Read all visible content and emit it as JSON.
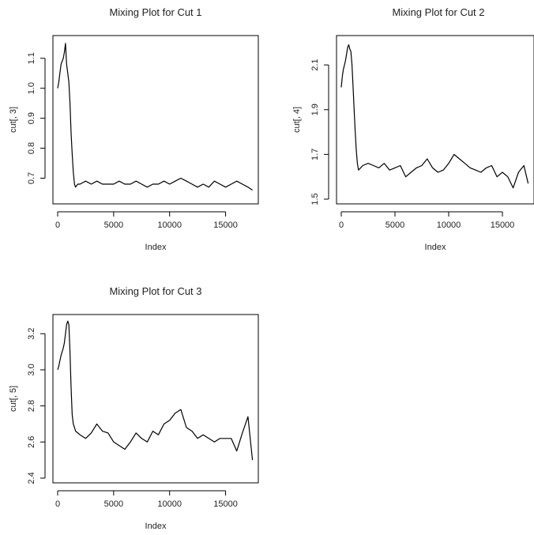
{
  "chart_data": [
    {
      "type": "line",
      "title": "Mixing Plot for Cut 1",
      "xlabel": "Index",
      "ylabel": "cut[, 3]",
      "xlim": [
        0,
        17500
      ],
      "ylim": [
        0.63,
        1.16
      ],
      "xticks": [
        0,
        5000,
        10000,
        15000
      ],
      "yticks": [
        0.7,
        0.8,
        0.9,
        1.0,
        1.1
      ],
      "xtick_labels": [
        "0",
        "5000",
        "10000",
        "15000"
      ],
      "ytick_labels": [
        "0.7",
        "0.8",
        "0.9",
        "1.0",
        "1.1"
      ],
      "grid": false,
      "series": [
        {
          "x": [
            0,
            100,
            200,
            300,
            400,
            500,
            600,
            700,
            800,
            900,
            1000,
            1100,
            1200,
            1300,
            1400,
            1500,
            1600,
            1800,
            2000,
            2500,
            3000,
            3500,
            4000,
            4500,
            5000,
            5500,
            6000,
            6500,
            7000,
            7500,
            8000,
            8500,
            9000,
            9500,
            10000,
            10500,
            11000,
            11500,
            12000,
            12500,
            13000,
            13500,
            14000,
            14500,
            15000,
            15500,
            16000,
            16500,
            17000,
            17400
          ],
          "values": [
            1.0,
            1.02,
            1.05,
            1.08,
            1.09,
            1.1,
            1.12,
            1.15,
            1.08,
            1.05,
            1.02,
            0.95,
            0.85,
            0.78,
            0.72,
            0.68,
            0.67,
            0.68,
            0.68,
            0.69,
            0.68,
            0.69,
            0.68,
            0.68,
            0.68,
            0.69,
            0.68,
            0.68,
            0.69,
            0.68,
            0.67,
            0.68,
            0.68,
            0.69,
            0.68,
            0.69,
            0.7,
            0.69,
            0.68,
            0.67,
            0.68,
            0.67,
            0.69,
            0.68,
            0.67,
            0.68,
            0.69,
            0.68,
            0.67,
            0.66
          ]
        }
      ]
    },
    {
      "type": "line",
      "title": "Mixing Plot for Cut 2",
      "xlabel": "Index",
      "ylabel": "cut[, 4]",
      "xlim": [
        0,
        17500
      ],
      "ylim": [
        1.5,
        2.21
      ],
      "xticks": [
        0,
        5000,
        10000,
        15000
      ],
      "yticks": [
        1.5,
        1.7,
        1.9,
        2.1
      ],
      "xtick_labels": [
        "0",
        "5000",
        "10000",
        "15000"
      ],
      "ytick_labels": [
        "1.5",
        "1.7",
        "1.9",
        "2.1"
      ],
      "grid": false,
      "series": [
        {
          "x": [
            0,
            100,
            200,
            300,
            400,
            500,
            600,
            700,
            800,
            900,
            1000,
            1100,
            1200,
            1300,
            1400,
            1500,
            1600,
            1800,
            2000,
            2500,
            3000,
            3500,
            4000,
            4500,
            5000,
            5500,
            6000,
            6500,
            7000,
            7500,
            8000,
            8500,
            9000,
            9500,
            10000,
            10500,
            11000,
            11500,
            12000,
            12500,
            13000,
            13500,
            14000,
            14500,
            15000,
            15500,
            16000,
            16500,
            17000,
            17400
          ],
          "values": [
            2.0,
            2.05,
            2.08,
            2.1,
            2.12,
            2.15,
            2.18,
            2.19,
            2.17,
            2.16,
            2.1,
            2.0,
            1.9,
            1.8,
            1.72,
            1.66,
            1.63,
            1.64,
            1.65,
            1.66,
            1.65,
            1.64,
            1.66,
            1.63,
            1.64,
            1.65,
            1.6,
            1.62,
            1.64,
            1.65,
            1.68,
            1.64,
            1.62,
            1.63,
            1.66,
            1.7,
            1.68,
            1.66,
            1.64,
            1.63,
            1.62,
            1.64,
            1.65,
            1.6,
            1.62,
            1.6,
            1.55,
            1.62,
            1.65,
            1.57
          ]
        }
      ]
    },
    {
      "type": "line",
      "title": "Mixing Plot for Cut 3",
      "xlabel": "Index",
      "ylabel": "cut[, 5]",
      "xlim": [
        0,
        17500
      ],
      "ylim": [
        2.4,
        3.28
      ],
      "xticks": [
        0,
        5000,
        10000,
        15000
      ],
      "yticks": [
        2.4,
        2.6,
        2.8,
        3.0,
        3.2
      ],
      "xtick_labels": [
        "0",
        "5000",
        "10000",
        "15000"
      ],
      "ytick_labels": [
        "2.4",
        "2.6",
        "2.8",
        "3.0",
        "3.2"
      ],
      "grid": false,
      "series": [
        {
          "x": [
            0,
            100,
            200,
            300,
            400,
            500,
            600,
            700,
            800,
            900,
            1000,
            1100,
            1200,
            1300,
            1400,
            1500,
            1600,
            1800,
            2000,
            2500,
            3000,
            3500,
            4000,
            4500,
            5000,
            5500,
            6000,
            6500,
            7000,
            7500,
            8000,
            8500,
            9000,
            9500,
            10000,
            10500,
            11000,
            11500,
            12000,
            12500,
            13000,
            13500,
            14000,
            14500,
            15000,
            15500,
            16000,
            16500,
            17000,
            17400
          ],
          "values": [
            3.0,
            3.02,
            3.05,
            3.08,
            3.1,
            3.12,
            3.15,
            3.2,
            3.25,
            3.27,
            3.25,
            3.1,
            2.9,
            2.75,
            2.7,
            2.68,
            2.66,
            2.65,
            2.64,
            2.62,
            2.65,
            2.7,
            2.66,
            2.65,
            2.6,
            2.58,
            2.56,
            2.6,
            2.65,
            2.62,
            2.6,
            2.66,
            2.64,
            2.7,
            2.72,
            2.76,
            2.78,
            2.68,
            2.66,
            2.62,
            2.64,
            2.62,
            2.6,
            2.62,
            2.62,
            2.62,
            2.55,
            2.65,
            2.74,
            2.5
          ]
        }
      ]
    }
  ]
}
